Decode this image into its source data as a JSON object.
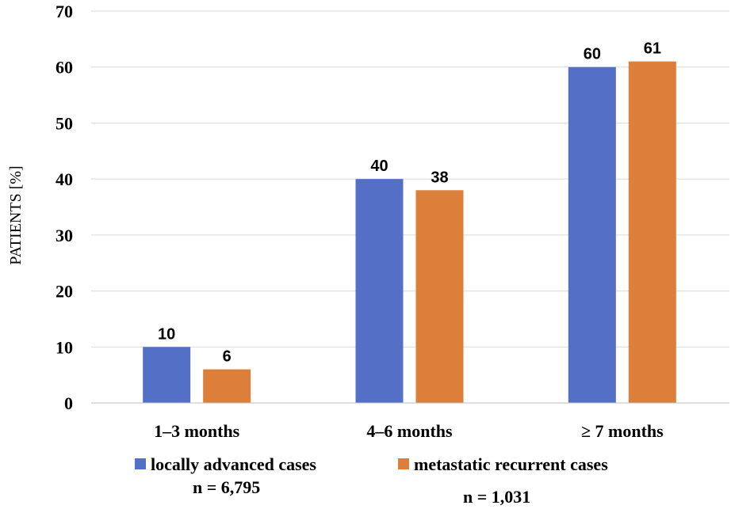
{
  "chart_data": {
    "type": "bar",
    "title": "",
    "xlabel": "",
    "ylabel": "PATIENTS  [%]",
    "ylim": [
      0,
      70
    ],
    "yticks": [
      0,
      10,
      20,
      30,
      40,
      50,
      60,
      70
    ],
    "yticks_text": [
      "0",
      "10",
      "20",
      "30",
      "40",
      "50",
      "60",
      "70"
    ],
    "grid": true,
    "categories": [
      "1–3 months",
      "4–6 months",
      "≥ 7 months"
    ],
    "series": [
      {
        "name": "locally advanced cases",
        "n_label": "n = 6,795",
        "color": "#5470c6",
        "values": [
          10,
          40,
          60
        ],
        "labels": [
          "10",
          "40",
          "60"
        ]
      },
      {
        "name": "metastatic recurrent cases",
        "n_label": "n = 1,031",
        "color": "#dc7f3a",
        "values": [
          6,
          38,
          61
        ],
        "labels": [
          "6",
          "38",
          "61"
        ]
      }
    ],
    "legend_position": "bottom"
  }
}
